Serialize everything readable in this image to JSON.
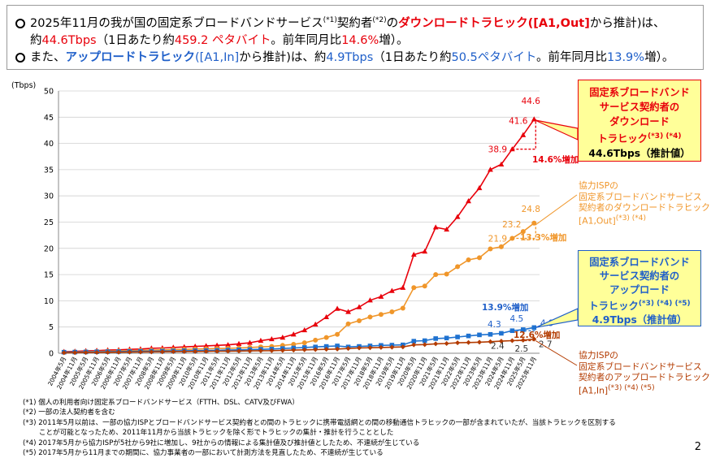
{
  "header": {
    "line1": {
      "a": "2025年11月の我が国の固定系ブロードバンドサービス",
      "s1": "(*1)",
      "b": "契約者",
      "s2": "(*2)",
      "c": "の",
      "d": "ダウンロードトラヒック",
      "e": "([A1,Out]",
      "f": "から推計)は、"
    },
    "line2": {
      "a": "約",
      "b": "44.6Tbps",
      "c": "（1日あたり約",
      "d": "459.2 ペタバイト",
      "e": "。前年同月比",
      "f": "14.6%",
      "g": "増）。"
    },
    "line3": {
      "a": "また、",
      "b": "アップロードトラヒック",
      "c": "([A1,In]",
      "d": "から推計)は、約",
      "e": "4.9Tbps",
      "f": "（1日あたり約",
      "g": "50.5ペタバイト",
      "h": "。前年同月比",
      "i": "13.9%",
      "j": "増）。"
    }
  },
  "chart_data": {
    "type": "line",
    "ylabel": "(Tbps)",
    "ylim": [
      0,
      50
    ],
    "yticks": [
      0,
      5,
      10,
      15,
      20,
      25,
      30,
      35,
      40,
      45,
      50
    ],
    "categories": [
      "2004年5月",
      "2004年11月",
      "2005年5月",
      "2005年11月",
      "2006年5月",
      "2006年11月",
      "2007年5月",
      "2007年11月",
      "2008年5月",
      "2008年11月",
      "2009年5月",
      "2009年11月",
      "2010年5月",
      "2010年11月",
      "2011年5月",
      "2011年11月",
      "2012年5月",
      "2012年11月",
      "2013年5月",
      "2013年11月",
      "2014年5月",
      "2014年11月",
      "2015年5月",
      "2015年11月",
      "2016年5月",
      "2016年11月",
      "2017年5月",
      "2017年11月",
      "2018年5月",
      "2018年11月",
      "2019年5月",
      "2019年11月",
      "2020年5月",
      "2020年11月",
      "2021年5月",
      "2021年11月",
      "2022年5月",
      "2022年11月",
      "2023年5月",
      "2023年11月",
      "2024年5月",
      "2024年11月",
      "2025年5月",
      "2025年11月"
    ],
    "series": [
      {
        "name": "固定系ブロードバンドサービス契約者のダウンロードトラヒック",
        "color": "#e8000b",
        "marker": "triangle",
        "values": [
          0.3,
          0.35,
          0.45,
          0.5,
          0.6,
          0.65,
          0.75,
          0.8,
          0.95,
          1.0,
          1.1,
          1.2,
          1.3,
          1.4,
          1.5,
          1.6,
          1.8,
          2.0,
          2.4,
          2.7,
          3.0,
          3.6,
          4.4,
          5.5,
          6.9,
          8.5,
          7.9,
          8.8,
          10.1,
          10.8,
          11.9,
          12.5,
          18.8,
          19.4,
          24.0,
          23.6,
          26.0,
          29.0,
          31.5,
          35.0,
          36.0,
          38.9,
          41.6,
          44.6
        ]
      },
      {
        "name": "協力ISPの固定系ブロードバンドサービス契約者のダウンロードトラヒック",
        "color": "#f0962a",
        "marker": "circle",
        "values": [
          0.2,
          0.25,
          0.3,
          0.35,
          0.4,
          0.45,
          0.5,
          0.55,
          0.6,
          0.65,
          0.7,
          0.75,
          0.8,
          0.85,
          0.9,
          0.95,
          1.0,
          1.1,
          1.2,
          1.3,
          1.5,
          1.7,
          2.0,
          2.5,
          3.0,
          3.6,
          5.6,
          6.2,
          6.9,
          7.4,
          7.9,
          8.6,
          12.5,
          12.8,
          15.0,
          15.1,
          16.5,
          17.8,
          18.2,
          19.9,
          20.3,
          21.9,
          23.2,
          24.8
        ]
      },
      {
        "name": "固定系ブロードバンドサービス契約者のアップロードトラヒック",
        "color": "#1f72d0",
        "marker": "square",
        "values": [
          0.2,
          0.22,
          0.25,
          0.28,
          0.3,
          0.32,
          0.35,
          0.38,
          0.4,
          0.42,
          0.45,
          0.48,
          0.5,
          0.52,
          0.55,
          0.6,
          0.65,
          0.7,
          0.75,
          0.8,
          0.9,
          1.0,
          1.1,
          1.2,
          1.3,
          1.4,
          1.2,
          1.3,
          1.4,
          1.5,
          1.55,
          1.6,
          2.3,
          2.4,
          2.8,
          2.9,
          3.1,
          3.3,
          3.5,
          3.6,
          3.8,
          4.3,
          4.5,
          4.9
        ]
      },
      {
        "name": "協力ISPの固定系ブロードバンドサービス契約者のアップロードトラヒック",
        "color": "#b33b00",
        "marker": "diamond",
        "values": [
          0.1,
          0.12,
          0.14,
          0.16,
          0.18,
          0.2,
          0.22,
          0.24,
          0.26,
          0.28,
          0.3,
          0.32,
          0.34,
          0.36,
          0.38,
          0.4,
          0.42,
          0.45,
          0.48,
          0.5,
          0.55,
          0.6,
          0.65,
          0.7,
          0.75,
          0.8,
          0.9,
          1.0,
          1.05,
          1.1,
          1.15,
          1.2,
          1.6,
          1.65,
          1.8,
          1.85,
          2.0,
          2.05,
          2.1,
          2.2,
          2.3,
          2.4,
          2.5,
          2.7
        ]
      }
    ],
    "data_labels": [
      {
        "series": 0,
        "index": 43,
        "text": "44.6"
      },
      {
        "series": 0,
        "index": 42,
        "text": "41.6"
      },
      {
        "series": 0,
        "index": 41,
        "text": "38.9"
      },
      {
        "series": 1,
        "index": 43,
        "text": "24.8"
      },
      {
        "series": 1,
        "index": 42,
        "text": "23.2"
      },
      {
        "series": 1,
        "index": 41,
        "text": "21.9"
      },
      {
        "series": 2,
        "index": 43,
        "text": "4.9"
      },
      {
        "series": 2,
        "index": 42,
        "text": "4.5"
      },
      {
        "series": 2,
        "index": 41,
        "text": "4.3"
      },
      {
        "series": 3,
        "index": 43,
        "text": "2.7"
      },
      {
        "series": 3,
        "index": 42,
        "text": "2.5"
      },
      {
        "series": 3,
        "index": 41,
        "text": "2.4"
      }
    ],
    "growth_labels": [
      {
        "text": "14.6%増加",
        "color": "#e8000b"
      },
      {
        "text": "13.3%増加",
        "color": "#f0962a"
      },
      {
        "text": "13.9%増加",
        "color": "#1f5fc9"
      },
      {
        "text": "12.6%増加",
        "color": "#b33b00"
      }
    ]
  },
  "callouts": {
    "download": {
      "line1": "固定系ブロードバンド",
      "line2": "サービス契約者の",
      "line3": "ダウンロード",
      "line4": "トラヒック",
      "line4_sup": "(*3) (*4)",
      "line5": "44.6Tbps（推計値）"
    },
    "upload": {
      "line1": "固定系ブロードバンド",
      "line2": "サービス契約者の",
      "line3": "アップロード",
      "line4": "トラヒック",
      "line4_sup": "(*3) (*4) (*5)",
      "line5": "4.9Tbps（推計値）"
    },
    "isp_download": {
      "line1": "協力ISPの",
      "line2": "固定系ブロードバンドサービス",
      "line3": "契約者のダウンロードトラヒック",
      "line4": "[A1,Out]",
      "line4_sup": "(*3) (*4)"
    },
    "isp_upload": {
      "line1": "協力ISPの",
      "line2": "固定系ブロードバンドサービス",
      "line3": "契約者のアップロードトラヒック",
      "line4": "[A1,In]",
      "line4_sup": "(*3) (*4) (*5)"
    }
  },
  "footnotes": [
    "(*1) 個人の利用者向け固定系ブロードバンドサービス（FTTH、DSL、CATV及びFWA）",
    "(*2) 一部の法人契約者を含む",
    "(*3) 2011年5月以前は、一部の協力ISPとブロードバンドサービス契約者との間のトラヒックに携帯電話網との間の移動通信トラヒックの一部が含まれていたが、当該トラヒックを区別する",
    "　　 ことが可能となったため、2011年11月から当該トラヒックを除く形でトラヒックの集計・推計を行うこととした",
    "(*4) 2017年5月から協力ISPが5社から9社に増加し、9社からの情報による集計値及び推計値としたため、不連続が生じている",
    "(*5) 2017年5月から11月までの期間に、協力事業者の一部において計測方法を見直したため、不連続が生じている"
  ],
  "page_number": "2"
}
